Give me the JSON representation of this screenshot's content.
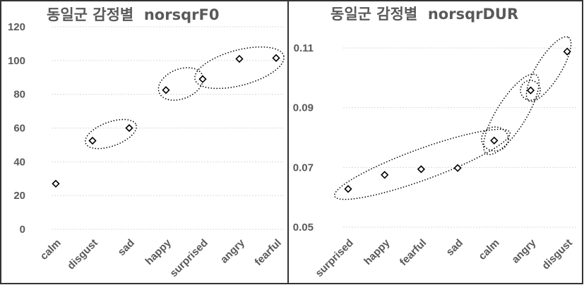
{
  "chart_data": [
    {
      "type": "scatter",
      "title": "동일군 감정별  norsqrF0",
      "categories": [
        "calm",
        "disgust",
        "sad",
        "happy",
        "surprised",
        "angry",
        "fearful"
      ],
      "values": [
        27,
        52.5,
        60,
        82.5,
        89,
        101,
        101.5
      ],
      "ylim": [
        0,
        120
      ],
      "yticks": [
        0,
        20,
        40,
        60,
        80,
        100,
        120
      ],
      "ytick_labels": [
        "0",
        "20",
        "40",
        "60",
        "80",
        "100",
        "120"
      ],
      "grid": true,
      "groups": [
        [
          "disgust",
          "sad"
        ],
        [
          "happy",
          "surprised"
        ],
        [
          "surprised",
          "angry",
          "fearful"
        ]
      ]
    },
    {
      "type": "scatter",
      "title": "동일군 감정별  norsqrDUR",
      "categories": [
        "surprised",
        "happy",
        "fearful",
        "sad",
        "calm",
        "angry",
        "disgust"
      ],
      "values": [
        0.0628,
        0.0675,
        0.0694,
        0.0698,
        0.079,
        0.0958,
        0.1088
      ],
      "ylim": [
        0.05,
        0.11
      ],
      "yticks": [
        0.05,
        0.07,
        0.09,
        0.11
      ],
      "ytick_labels": [
        "0.05",
        "0.07",
        "0.09",
        "0.11"
      ],
      "grid": true,
      "groups": [
        [
          "surprised",
          "happy",
          "fearful",
          "sad",
          "calm"
        ],
        [
          "calm"
        ],
        [
          "calm",
          "angry"
        ],
        [
          "angry"
        ],
        [
          "angry",
          "disgust"
        ]
      ]
    }
  ]
}
